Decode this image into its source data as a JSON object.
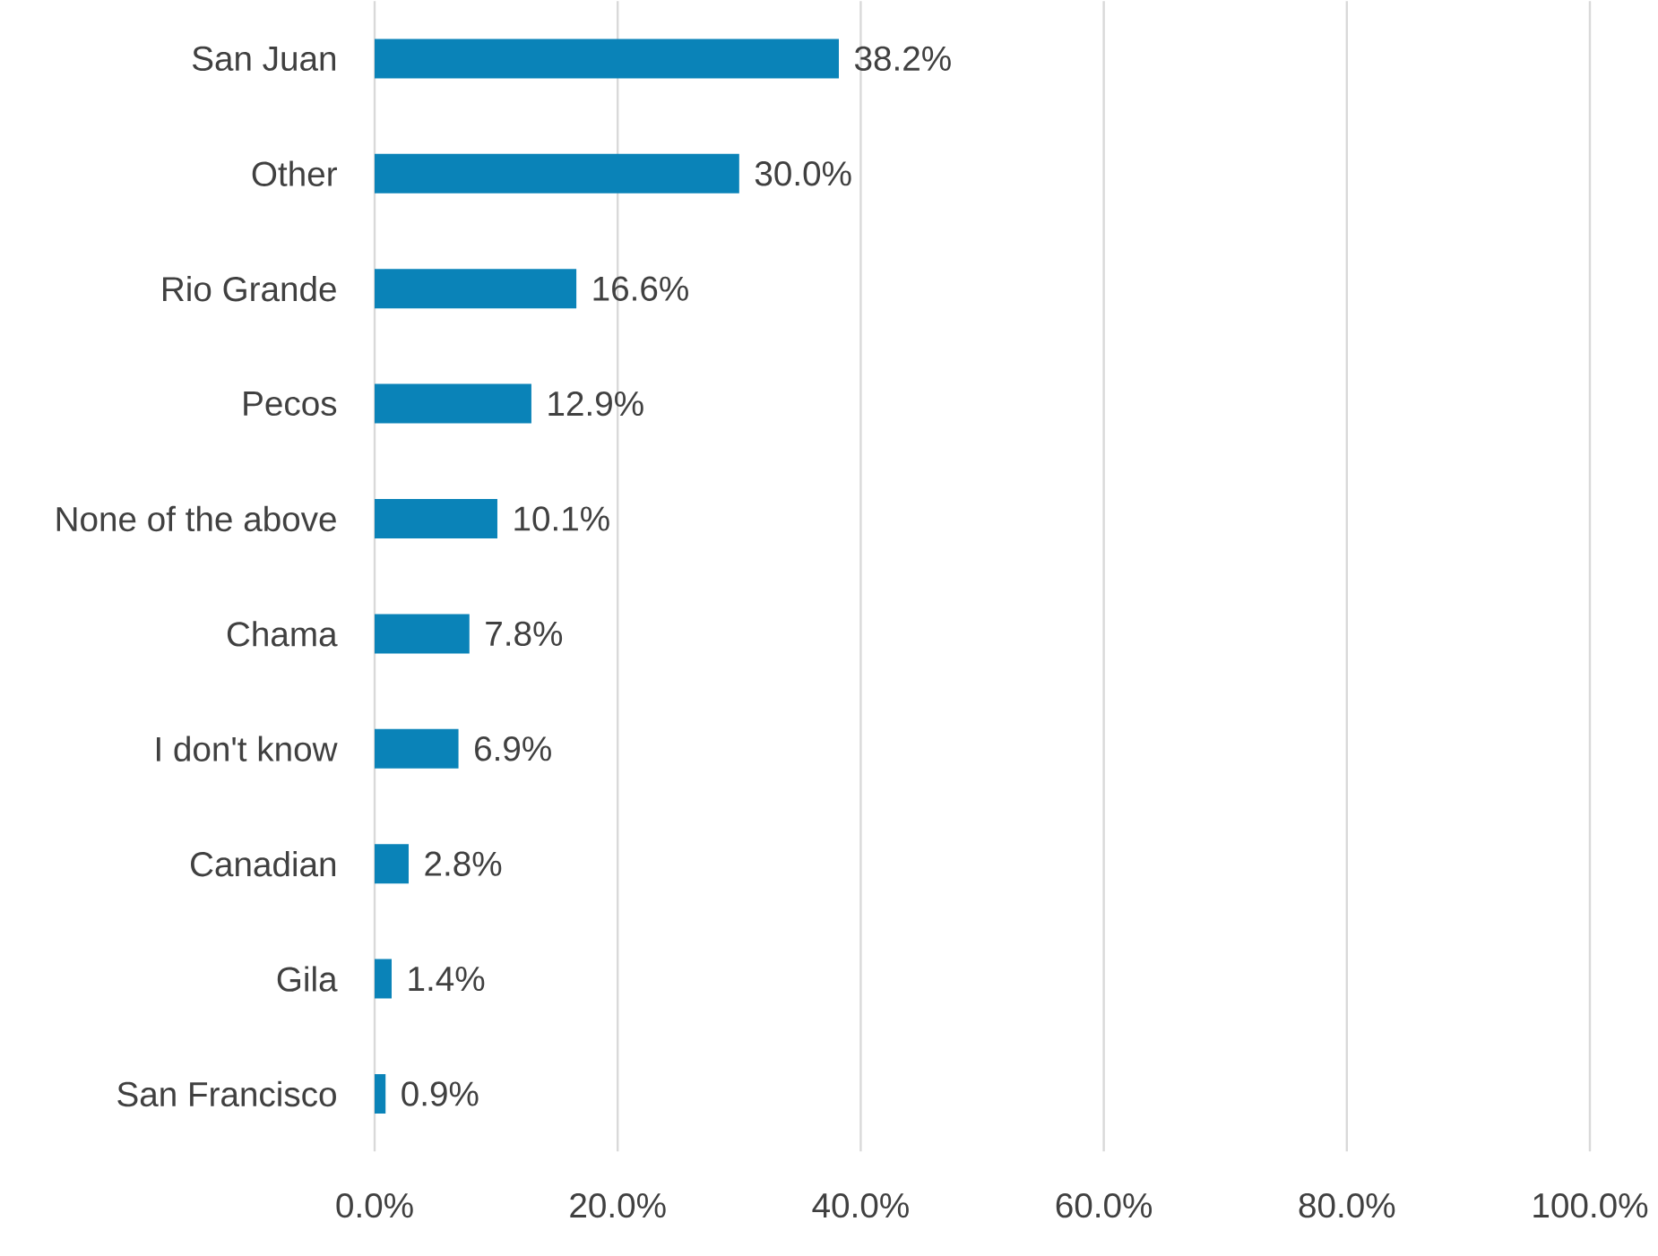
{
  "chart_data": {
    "type": "bar",
    "orientation": "horizontal",
    "categories": [
      "San Juan",
      "Other",
      "Rio Grande",
      "Pecos",
      "None of the above",
      "Chama",
      "I don't know",
      "Canadian",
      "Gila",
      "San Francisco"
    ],
    "values": [
      38.2,
      30.0,
      16.6,
      12.9,
      10.1,
      7.8,
      6.9,
      2.8,
      1.4,
      0.9
    ],
    "value_labels": [
      "38.2%",
      "30.0%",
      "16.6%",
      "12.9%",
      "10.1%",
      "7.8%",
      "6.9%",
      "2.8%",
      "1.4%",
      "0.9%"
    ],
    "color": "#0a83b8",
    "xlim": [
      0,
      100
    ],
    "xticks": [
      {
        "value": 0,
        "label": "0.0%"
      },
      {
        "value": 20,
        "label": "20.0%"
      },
      {
        "value": 40,
        "label": "40.0%"
      },
      {
        "value": 60,
        "label": "60.0%"
      },
      {
        "value": 80,
        "label": "80.0%"
      },
      {
        "value": 100,
        "label": "100.0%"
      }
    ],
    "grid": "x"
  }
}
